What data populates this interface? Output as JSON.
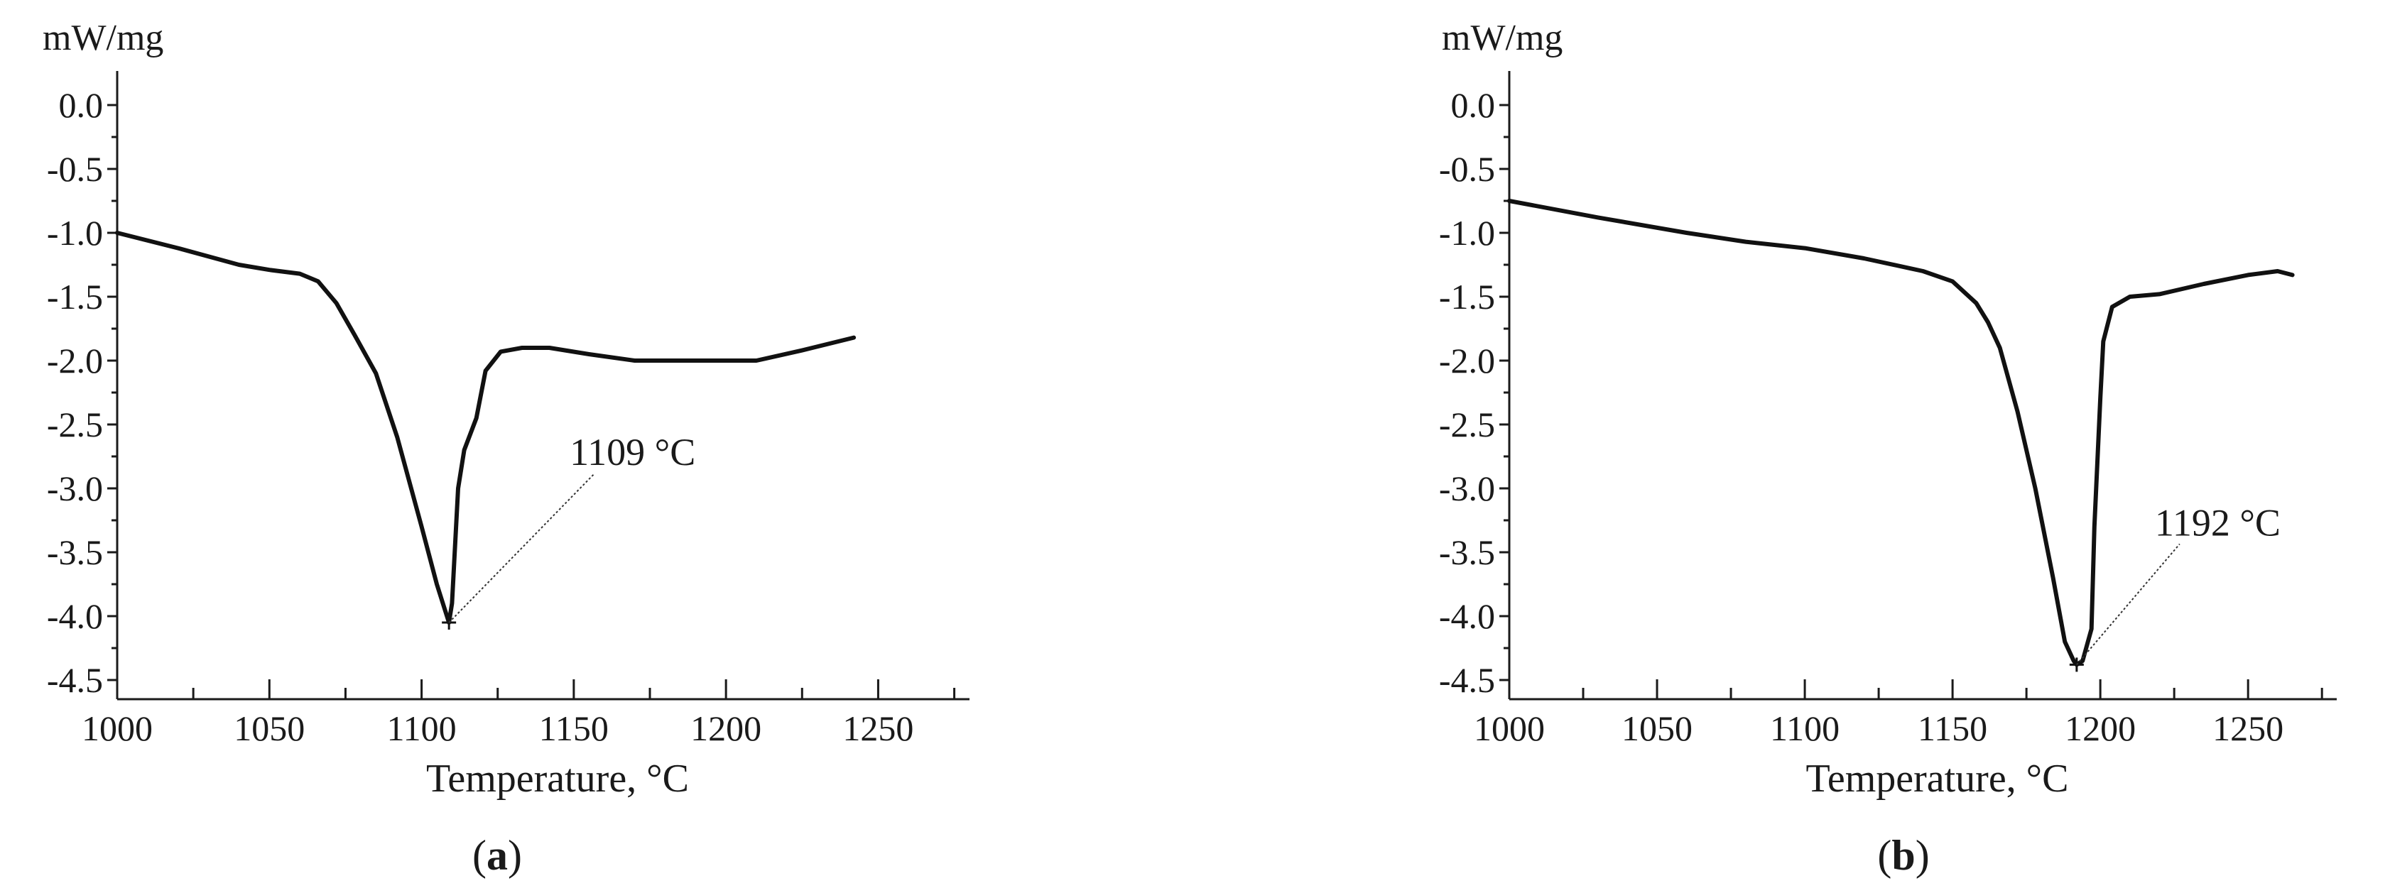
{
  "chart_data": [
    {
      "type": "line",
      "panel_label": "a",
      "unit_label": "mW/mg",
      "xlabel": "Temperature, °C",
      "xlim": [
        1000,
        1280
      ],
      "ylim": [
        -4.65,
        0.1
      ],
      "x_ticks": [
        1000,
        1050,
        1100,
        1150,
        1200,
        1250
      ],
      "y_ticks": [
        0.0,
        -0.5,
        -1.0,
        -1.5,
        -2.0,
        -2.5,
        -3.0,
        -3.5,
        -4.0,
        -4.5
      ],
      "y_tick_labels": [
        "0.0",
        "-0.5",
        "-1.0",
        "-1.5",
        "-2.0",
        "-2.5",
        "-3.0",
        "-3.5",
        "-4.0",
        "-4.5"
      ],
      "grid": false,
      "series": [
        {
          "x": [
            1000,
            1020,
            1040,
            1050,
            1060,
            1066,
            1072,
            1078,
            1085,
            1092,
            1100,
            1105,
            1109,
            1110,
            1112,
            1114,
            1118,
            1121,
            1126,
            1133,
            1142,
            1155,
            1170,
            1185,
            1200,
            1210,
            1225,
            1242
          ],
          "y": [
            -1.0,
            -1.12,
            -1.25,
            -1.29,
            -1.32,
            -1.38,
            -1.55,
            -1.8,
            -2.1,
            -2.6,
            -3.3,
            -3.75,
            -4.05,
            -3.9,
            -3.0,
            -2.7,
            -2.45,
            -2.08,
            -1.93,
            -1.9,
            -1.9,
            -1.95,
            -2.0,
            -2.0,
            -2.0,
            -2.0,
            -1.92,
            -1.82
          ]
        }
      ],
      "annotations": [
        {
          "text": "1109 °C",
          "x": 1109,
          "y": -4.05
        }
      ]
    },
    {
      "type": "line",
      "panel_label": "b",
      "unit_label": "mW/mg",
      "xlabel": "Temperature, °C",
      "xlim": [
        1000,
        1280
      ],
      "ylim": [
        -4.65,
        0.1
      ],
      "x_ticks": [
        1000,
        1050,
        1100,
        1150,
        1200,
        1250
      ],
      "y_ticks": [
        0.0,
        -0.5,
        -1.0,
        -1.5,
        -2.0,
        -2.5,
        -3.0,
        -3.5,
        -4.0,
        -4.5
      ],
      "y_tick_labels": [
        "0.0",
        "-0.5",
        "-1.0",
        "-1.5",
        "-2.0",
        "-2.5",
        "-3.0",
        "-3.5",
        "-4.0",
        "-4.5"
      ],
      "grid": false,
      "series": [
        {
          "x": [
            1000,
            1030,
            1060,
            1080,
            1100,
            1120,
            1140,
            1150,
            1158,
            1162,
            1166,
            1172,
            1178,
            1184,
            1188,
            1191,
            1192,
            1194,
            1197,
            1198,
            1200,
            1201,
            1204,
            1210,
            1220,
            1235,
            1250,
            1260,
            1265
          ],
          "y": [
            -0.75,
            -0.88,
            -1.0,
            -1.07,
            -1.12,
            -1.2,
            -1.3,
            -1.38,
            -1.55,
            -1.7,
            -1.9,
            -2.4,
            -3.0,
            -3.7,
            -4.2,
            -4.35,
            -4.38,
            -4.35,
            -4.1,
            -3.3,
            -2.3,
            -1.85,
            -1.58,
            -1.5,
            -1.48,
            -1.4,
            -1.33,
            -1.3,
            -1.33
          ]
        }
      ],
      "annotations": [
        {
          "text": "1192 °C",
          "x": 1192,
          "y": -4.38
        }
      ]
    }
  ]
}
